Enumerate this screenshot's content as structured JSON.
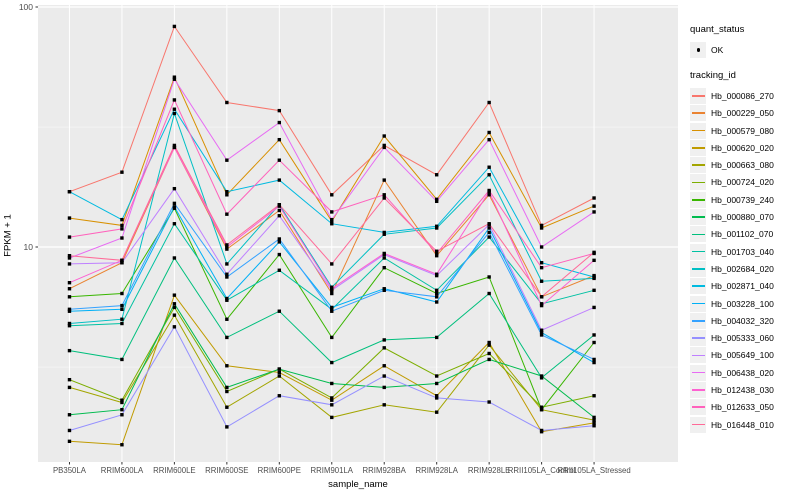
{
  "figure": {
    "background": "#ffffff",
    "panel_bg": "#ebebeb",
    "grid_major": "#ffffff",
    "grid_minor": "#f3f3f3",
    "tick_mark_color": "#333333",
    "axis_text_color": "#4d4d4d",
    "point_color": "#000000"
  },
  "chart_data": {
    "type": "line",
    "title": "",
    "xlabel": "sample_name",
    "ylabel": "FPKM + 1",
    "y_scale": "log10",
    "ylim": [
      1.25,
      110
    ],
    "y_ticks": [
      "100",
      "10"
    ],
    "y_tick_values": [
      100,
      10
    ],
    "y_minor_gridlines": [
      31.6,
      3.16
    ],
    "grid": "on",
    "point_marker": "black-point",
    "legend_position": "right",
    "categories": [
      "PB350LA",
      "RRIM600LA",
      "RRIM600LE",
      "RRIM600SE",
      "RRIM600PE",
      "RRIM901LA",
      "RRIM928BA",
      "RRIM928LA",
      "RRIM928LE",
      "RRII105LA_Control",
      "RRII105LA_Stressed"
    ],
    "legend": {
      "quant_title": "quant_status",
      "quant_items": [
        {
          "label": "OK",
          "marker": "point"
        }
      ],
      "series_title": "tracking_id"
    },
    "series": [
      {
        "name": "Hb_000086_270",
        "color": "#F8766D",
        "values": [
          17,
          20.5,
          83,
          40,
          37,
          16.5,
          26.5,
          20,
          40,
          12.3,
          16
        ]
      },
      {
        "name": "Hb_000229_050",
        "color": "#EA8331",
        "values": [
          6.7,
          8.6,
          26,
          9.8,
          14.2,
          6.4,
          19,
          9.2,
          16.5,
          6.2,
          7.6
        ]
      },
      {
        "name": "Hb_000579_080",
        "color": "#D89000",
        "values": [
          13.2,
          12.3,
          51,
          16.5,
          28,
          12.8,
          29,
          15.8,
          30,
          12,
          14.8
        ]
      },
      {
        "name": "Hb_000620_020",
        "color": "#C09B00",
        "values": [
          1.55,
          1.5,
          6.3,
          3.2,
          3.0,
          2.3,
          3.2,
          2.4,
          4.0,
          1.7,
          1.85
        ]
      },
      {
        "name": "Hb_000663_080",
        "color": "#A3A500",
        "values": [
          2.6,
          2.25,
          5.2,
          2.15,
          2.9,
          1.95,
          2.2,
          2.05,
          3.9,
          2.1,
          1.9
        ]
      },
      {
        "name": "Hb_000724_020",
        "color": "#7CAE00",
        "values": [
          2.8,
          2.3,
          5.6,
          2.5,
          3.1,
          2.35,
          3.8,
          2.9,
          3.6,
          2.15,
          2.4
        ]
      },
      {
        "name": "Hb_000739_240",
        "color": "#39B600",
        "values": [
          6.2,
          6.4,
          14.5,
          5.0,
          9.3,
          4.2,
          8.2,
          6.4,
          7.5,
          2.1,
          4.0
        ]
      },
      {
        "name": "Hb_000880_070",
        "color": "#00BB4E",
        "values": [
          2.0,
          2.1,
          5.8,
          2.6,
          3.1,
          2.7,
          2.6,
          2.7,
          3.4,
          2.9,
          1.95
        ]
      },
      {
        "name": "Hb_001102_070",
        "color": "#00BF7D",
        "values": [
          3.7,
          3.4,
          9.0,
          4.2,
          5.4,
          3.3,
          4.1,
          4.2,
          6.4,
          2.85,
          4.3
        ]
      },
      {
        "name": "Hb_001703_040",
        "color": "#00C1A3",
        "values": [
          4.7,
          4.8,
          12.5,
          6.0,
          8.0,
          5.5,
          9.0,
          6.6,
          11,
          5.8,
          6.6
        ]
      },
      {
        "name": "Hb_002684_020",
        "color": "#00BFC4",
        "values": [
          4.8,
          5.0,
          36,
          8.5,
          15,
          6.8,
          11.3,
          12,
          20,
          7.2,
          7.4
        ]
      },
      {
        "name": "Hb_002871_040",
        "color": "#00BAE0",
        "values": [
          17,
          13,
          37.5,
          17,
          19,
          12.5,
          11.5,
          12.2,
          21.5,
          8.6,
          7.5
        ]
      },
      {
        "name": "Hb_003228_100",
        "color": "#00B0F6",
        "values": [
          5.4,
          5.5,
          14.7,
          6.1,
          10.5,
          5.6,
          6.7,
          5.9,
          12,
          4.4,
          3.3
        ]
      },
      {
        "name": "Hb_004032_320",
        "color": "#35A2FF",
        "values": [
          5.5,
          5.7,
          15.2,
          7.5,
          10.8,
          5.4,
          6.6,
          6.2,
          11.5,
          4.3,
          3.4
        ]
      },
      {
        "name": "Hb_005333_060",
        "color": "#9590FF",
        "values": [
          1.72,
          2.0,
          4.65,
          1.78,
          2.4,
          2.2,
          2.9,
          2.35,
          2.26,
          1.72,
          1.8
        ]
      },
      {
        "name": "Hb_005649_100",
        "color": "#BF80FF",
        "values": [
          8.5,
          8.6,
          17.5,
          7.7,
          13.5,
          6.6,
          9.3,
          7.6,
          12.4,
          4.5,
          5.6
        ]
      },
      {
        "name": "Hb_006438_020",
        "color": "#E76BF3",
        "values": [
          9.0,
          10.9,
          50,
          23,
          33,
          13,
          26,
          15.5,
          28,
          10,
          14
        ]
      },
      {
        "name": "Hb_012438_030",
        "color": "#FD61D1",
        "values": [
          7.1,
          8.8,
          26,
          10,
          14.8,
          6.7,
          9.4,
          7.7,
          17,
          5.7,
          8.8
        ]
      },
      {
        "name": "Hb_012633_050",
        "color": "#FF62BC",
        "values": [
          11,
          11.9,
          41,
          13.7,
          23,
          14,
          16.5,
          9.4,
          17.2,
          8.2,
          9.4
        ]
      },
      {
        "name": "Hb_016448_010",
        "color": "#FF6A98",
        "values": [
          9.2,
          8.8,
          26.5,
          10.2,
          15,
          8.5,
          16,
          9.6,
          12.5,
          6.2,
          9.5
        ]
      }
    ]
  }
}
